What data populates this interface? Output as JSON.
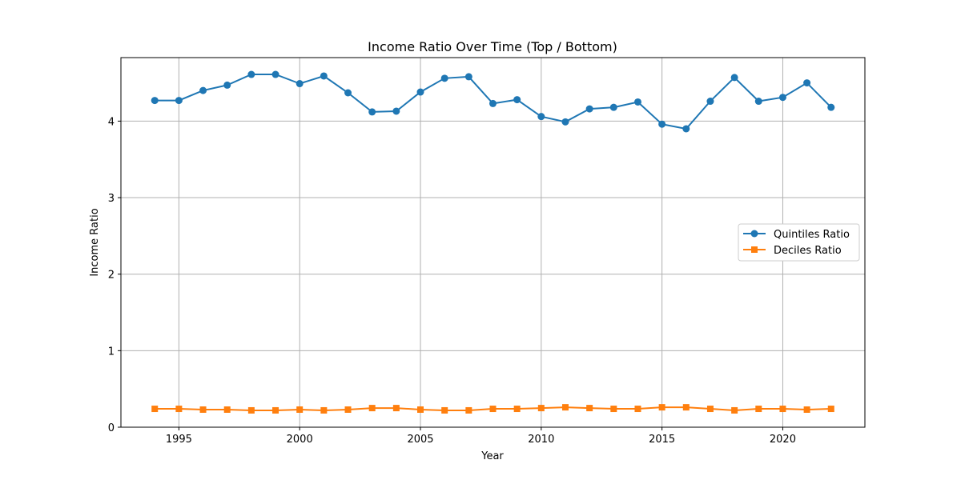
{
  "chart_data": {
    "type": "line",
    "title": "Income Ratio Over Time (Top / Bottom)",
    "xlabel": "Year",
    "ylabel": "Income Ratio",
    "xlim": [
      1992.6,
      2023.4
    ],
    "ylim": [
      0,
      4.83
    ],
    "xticks": [
      1995,
      2000,
      2005,
      2010,
      2015,
      2020
    ],
    "yticks": [
      0,
      1,
      2,
      3,
      4
    ],
    "grid": true,
    "legend_position": "center-right",
    "x": [
      1994,
      1995,
      1996,
      1997,
      1998,
      1999,
      2000,
      2001,
      2002,
      2003,
      2004,
      2005,
      2006,
      2007,
      2008,
      2009,
      2010,
      2011,
      2012,
      2013,
      2014,
      2015,
      2016,
      2017,
      2018,
      2019,
      2020,
      2021,
      2022
    ],
    "series": [
      {
        "name": "Quintiles Ratio",
        "color": "#1f77b4",
        "marker": "circle",
        "values": [
          4.27,
          4.27,
          4.4,
          4.47,
          4.61,
          4.61,
          4.49,
          4.59,
          4.37,
          4.12,
          4.13,
          4.38,
          4.56,
          4.58,
          4.23,
          4.28,
          4.06,
          3.99,
          4.16,
          4.18,
          4.25,
          3.96,
          3.9,
          4.26,
          4.57,
          4.26,
          4.31,
          4.5,
          4.18
        ]
      },
      {
        "name": "Deciles Ratio",
        "color": "#ff7f0e",
        "marker": "square",
        "values": [
          0.24,
          0.24,
          0.23,
          0.23,
          0.22,
          0.22,
          0.23,
          0.22,
          0.23,
          0.25,
          0.25,
          0.23,
          0.22,
          0.22,
          0.24,
          0.24,
          0.25,
          0.26,
          0.25,
          0.24,
          0.24,
          0.26,
          0.26,
          0.24,
          0.22,
          0.24,
          0.24,
          0.23,
          0.24
        ]
      }
    ]
  }
}
